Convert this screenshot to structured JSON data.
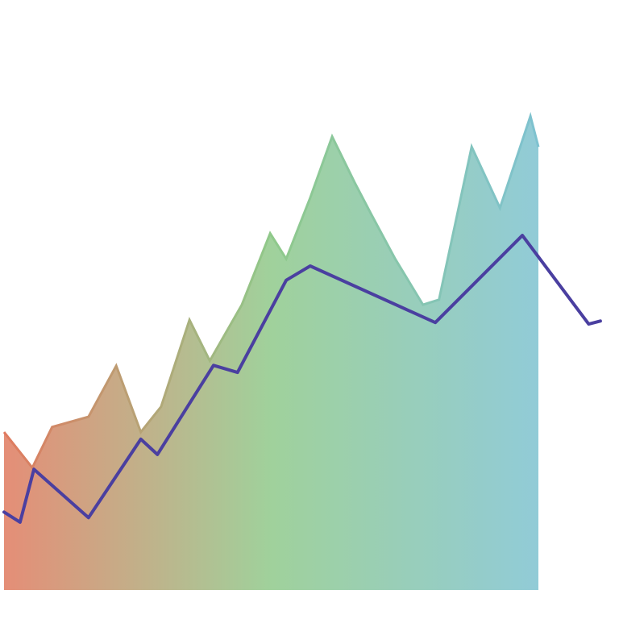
{
  "chart_data": {
    "type": "area",
    "xlim": [
      0,
      112
    ],
    "ylim": [
      0,
      100
    ],
    "series": [
      {
        "type": "area",
        "colors": [
          "#e07a5f",
          "#8fc98a",
          "#7ec2d0"
        ],
        "x": [
          0,
          5.3,
          9,
          15.8,
          21,
          25.6,
          29.4,
          34.7,
          38.5,
          44.5,
          49.8,
          52.8,
          57.3,
          61.4,
          65.6,
          68.6,
          73.2,
          78.4,
          81.4,
          87.5,
          92.8,
          98.5,
          100
        ],
        "values": [
          31,
          24,
          32,
          34,
          44,
          31,
          36,
          53,
          45,
          56,
          70,
          65,
          77,
          89,
          80,
          74,
          65,
          56,
          57,
          87,
          75,
          93,
          87
        ]
      },
      {
        "type": "line",
        "color": "#4a3fa0",
        "x": [
          0,
          3,
          5.6,
          15.8,
          25.6,
          28.7,
          39.2,
          43.7,
          52.8,
          57.3,
          80.7,
          97,
          109.4,
          111.6
        ],
        "values": [
          15.3,
          13.3,
          23.7,
          14.2,
          29.6,
          26.6,
          44.1,
          42.7,
          60.8,
          63.6,
          52.5,
          69.6,
          52.2,
          52.8
        ]
      }
    ]
  }
}
